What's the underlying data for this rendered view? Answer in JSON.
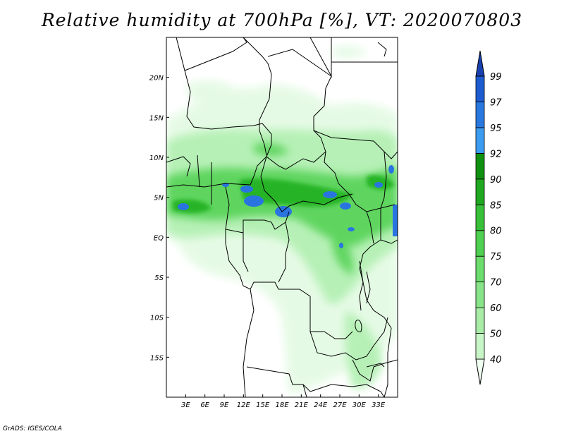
{
  "title": "Relative humidity at 700hPa [%], VT: 2020070803",
  "footer": "GrADS: IGES/COLA",
  "map": {
    "lon_range": [
      0,
      36
    ],
    "lat_range": [
      -20,
      25
    ],
    "lon_ticks": [
      {
        "value": 3,
        "label": "3E"
      },
      {
        "value": 6,
        "label": "6E"
      },
      {
        "value": 9,
        "label": "9E"
      },
      {
        "value": 12,
        "label": "12E"
      },
      {
        "value": 15,
        "label": "15E"
      },
      {
        "value": 18,
        "label": "18E"
      },
      {
        "value": 21,
        "label": "21E"
      },
      {
        "value": 24,
        "label": "24E"
      },
      {
        "value": 27,
        "label": "27E"
      },
      {
        "value": 30,
        "label": "30E"
      },
      {
        "value": 33,
        "label": "33E"
      }
    ],
    "lat_ticks": [
      {
        "value": 20,
        "label": "20N"
      },
      {
        "value": 15,
        "label": "15N"
      },
      {
        "value": 10,
        "label": "10N"
      },
      {
        "value": 5,
        "label": "5N"
      },
      {
        "value": 0,
        "label": "EQ"
      },
      {
        "value": -5,
        "label": "5S"
      },
      {
        "value": -10,
        "label": "10S"
      },
      {
        "value": -15,
        "label": "15S"
      }
    ]
  },
  "colorbar": {
    "levels": [
      "40",
      "50",
      "60",
      "70",
      "75",
      "80",
      "85",
      "90",
      "92",
      "95",
      "97",
      "99"
    ],
    "colors": [
      "#f0fff0",
      "#c8f5c8",
      "#a8eca8",
      "#88e488",
      "#6cdc6c",
      "#50d050",
      "#38c038",
      "#20a820",
      "#109010",
      "#3c9cf0",
      "#2878e0",
      "#1c5cd0",
      "#1840b0"
    ]
  }
}
